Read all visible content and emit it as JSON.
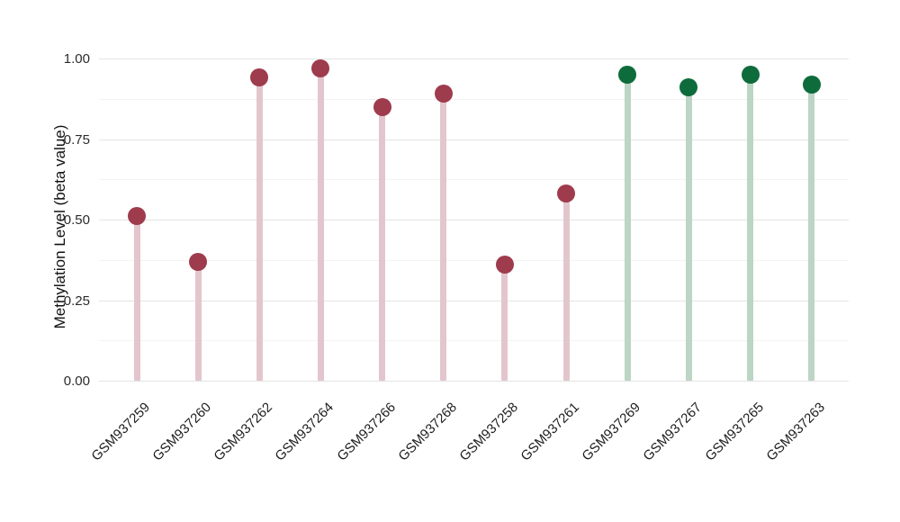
{
  "chart_data": {
    "type": "scatter",
    "variant": "lollipop",
    "title": "",
    "xlabel": "",
    "ylabel": "Methylation Level (beta value)",
    "ylim": [
      0,
      1.05
    ],
    "grid": "horizontal-only",
    "legend_position": "none",
    "yticks": [
      {
        "value": 0.0,
        "label": "0.00"
      },
      {
        "value": 0.25,
        "label": "0.25"
      },
      {
        "value": 0.5,
        "label": "0.50"
      },
      {
        "value": 0.75,
        "label": "0.75"
      },
      {
        "value": 1.0,
        "label": "1.00"
      }
    ],
    "minor_gridlines": [
      0.125,
      0.375,
      0.625,
      0.875
    ],
    "categories": [
      "GSM937259",
      "GSM937260",
      "GSM937262",
      "GSM937264",
      "GSM937266",
      "GSM937268",
      "GSM937258",
      "GSM937261",
      "GSM937269",
      "GSM937267",
      "GSM937265",
      "GSM937263"
    ],
    "points": [
      {
        "label": "GSM937259",
        "value": 0.51,
        "group": "maroon"
      },
      {
        "label": "GSM937260",
        "value": 0.37,
        "group": "maroon"
      },
      {
        "label": "GSM937262",
        "value": 0.94,
        "group": "maroon"
      },
      {
        "label": "GSM937264",
        "value": 0.97,
        "group": "maroon"
      },
      {
        "label": "GSM937266",
        "value": 0.85,
        "group": "maroon"
      },
      {
        "label": "GSM937268",
        "value": 0.89,
        "group": "maroon"
      },
      {
        "label": "GSM937258",
        "value": 0.36,
        "group": "maroon"
      },
      {
        "label": "GSM937261",
        "value": 0.58,
        "group": "maroon"
      },
      {
        "label": "GSM937269",
        "value": 0.95,
        "group": "green"
      },
      {
        "label": "GSM937267",
        "value": 0.91,
        "group": "green"
      },
      {
        "label": "GSM937265",
        "value": 0.95,
        "group": "green"
      },
      {
        "label": "GSM937263",
        "value": 0.92,
        "group": "green"
      }
    ],
    "group_colors": {
      "maroon": {
        "dot": "#9E3B4D",
        "stem": "#E3C6CD"
      },
      "green": {
        "dot": "#0E6B3C",
        "stem": "#BCD5C5"
      }
    },
    "grid_colors": {
      "major": "#e4e4e4",
      "minor": "#f3f3f3"
    },
    "background": "#ffffff"
  }
}
